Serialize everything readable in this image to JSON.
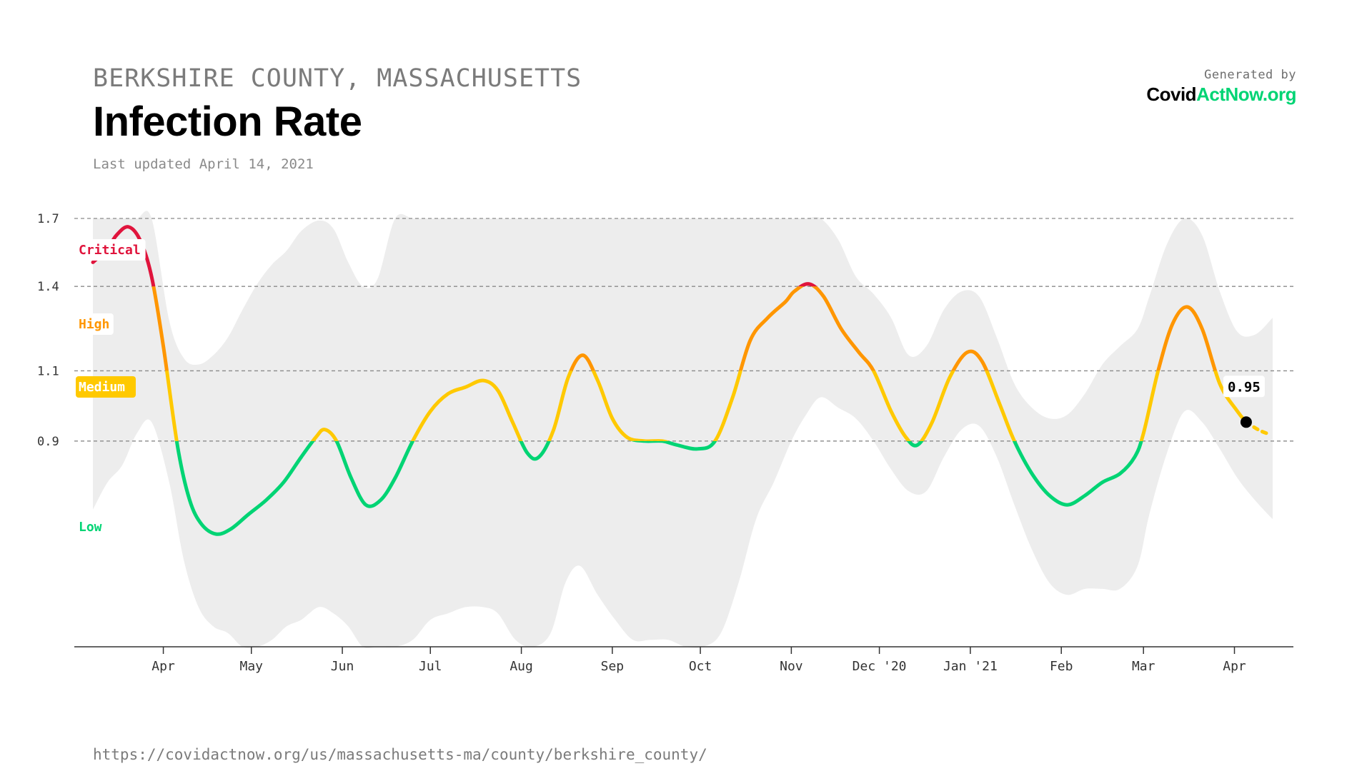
{
  "header": {
    "location": "BERKSHIRE COUNTY, MASSACHUSETTS",
    "title": "Infection Rate",
    "updated": "Last updated April 14, 2021"
  },
  "brand": {
    "generated_by": "Generated by",
    "logo_part1": "Covid",
    "logo_part2": "ActNow.org"
  },
  "footer": {
    "url": "https://covidactnow.org/us/massachusetts-ma/county/berkshire_county/"
  },
  "colors": {
    "critical": "#e0143c",
    "high": "#ff9600",
    "medium": "#ffc900",
    "low": "#00d474",
    "band": "#ededed",
    "gridline": "#8a8a8a",
    "axis": "#333333"
  },
  "chart_data": {
    "type": "line",
    "title": "Infection Rate",
    "x_axis_type": "date",
    "y_axis_type": "log",
    "xlim": [
      "2020-03-08",
      "2021-04-15"
    ],
    "ylim": [
      0.5,
      1.7
    ],
    "grid": true,
    "y_gridlines": [
      0.9,
      1.1,
      1.4,
      1.7
    ],
    "x_ticks": [
      {
        "date": "2020-04-01",
        "label": "Apr"
      },
      {
        "date": "2020-05-01",
        "label": "May"
      },
      {
        "date": "2020-06-01",
        "label": "Jun"
      },
      {
        "date": "2020-07-01",
        "label": "Jul"
      },
      {
        "date": "2020-08-01",
        "label": "Aug"
      },
      {
        "date": "2020-09-01",
        "label": "Sep"
      },
      {
        "date": "2020-10-01",
        "label": "Oct"
      },
      {
        "date": "2020-11-01",
        "label": "Nov"
      },
      {
        "date": "2020-12-01",
        "label": "Dec '20"
      },
      {
        "date": "2021-01-01",
        "label": "Jan '21"
      },
      {
        "date": "2021-02-01",
        "label": "Feb"
      },
      {
        "date": "2021-03-01",
        "label": "Mar"
      },
      {
        "date": "2021-04-01",
        "label": "Apr"
      }
    ],
    "y_ticks": [
      {
        "value": 0.9,
        "label": "0.9"
      },
      {
        "value": 1.1,
        "label": "1.1"
      },
      {
        "value": 1.4,
        "label": "1.4"
      },
      {
        "value": 1.7,
        "label": "1.7"
      }
    ],
    "levels": [
      {
        "name": "Critical",
        "label": "Critical",
        "min": 1.4,
        "max": 1.7,
        "color": "#e0143c"
      },
      {
        "name": "High",
        "label": "High",
        "min": 1.1,
        "max": 1.4,
        "color": "#ff9600"
      },
      {
        "name": "Medium",
        "label": "Medium",
        "min": 0.9,
        "max": 1.1,
        "color": "#ffc900"
      },
      {
        "name": "Low",
        "label": "Low",
        "min": 0.5,
        "max": 0.9,
        "color": "#00d474"
      }
    ],
    "series": [
      {
        "values": [
          [
            "2020-03-08",
            1.5
          ],
          [
            "2020-03-13",
            1.56
          ],
          [
            "2020-03-16",
            1.62
          ],
          [
            "2020-03-20",
            1.66
          ],
          [
            "2020-03-24",
            1.6
          ],
          [
            "2020-03-28",
            1.44
          ],
          [
            "2020-04-01",
            1.18
          ],
          [
            "2020-04-06",
            0.88
          ],
          [
            "2020-04-10",
            0.76
          ],
          [
            "2020-04-14",
            0.71
          ],
          [
            "2020-04-19",
            0.69
          ],
          [
            "2020-04-24",
            0.7
          ],
          [
            "2020-04-30",
            0.73
          ],
          [
            "2020-05-06",
            0.76
          ],
          [
            "2020-05-12",
            0.8
          ],
          [
            "2020-05-18",
            0.86
          ],
          [
            "2020-05-23",
            0.91
          ],
          [
            "2020-05-26",
            0.93
          ],
          [
            "2020-05-30",
            0.9
          ],
          [
            "2020-06-04",
            0.81
          ],
          [
            "2020-06-09",
            0.75
          ],
          [
            "2020-06-14",
            0.76
          ],
          [
            "2020-06-19",
            0.81
          ],
          [
            "2020-06-25",
            0.9
          ],
          [
            "2020-07-01",
            0.98
          ],
          [
            "2020-07-07",
            1.03
          ],
          [
            "2020-07-13",
            1.05
          ],
          [
            "2020-07-19",
            1.07
          ],
          [
            "2020-07-24",
            1.04
          ],
          [
            "2020-07-29",
            0.95
          ],
          [
            "2020-08-03",
            0.87
          ],
          [
            "2020-08-07",
            0.86
          ],
          [
            "2020-08-12",
            0.93
          ],
          [
            "2020-08-17",
            1.08
          ],
          [
            "2020-08-22",
            1.15
          ],
          [
            "2020-08-27",
            1.07
          ],
          [
            "2020-09-01",
            0.96
          ],
          [
            "2020-09-06",
            0.91
          ],
          [
            "2020-09-12",
            0.9
          ],
          [
            "2020-09-18",
            0.9
          ],
          [
            "2020-09-23",
            0.89
          ],
          [
            "2020-09-30",
            0.88
          ],
          [
            "2020-10-06",
            0.9
          ],
          [
            "2020-10-12",
            1.02
          ],
          [
            "2020-10-18",
            1.2
          ],
          [
            "2020-10-24",
            1.28
          ],
          [
            "2020-10-30",
            1.34
          ],
          [
            "2020-11-02",
            1.38
          ],
          [
            "2020-11-07",
            1.41
          ],
          [
            "2020-11-12",
            1.36
          ],
          [
            "2020-11-18",
            1.24
          ],
          [
            "2020-11-24",
            1.16
          ],
          [
            "2020-11-29",
            1.1
          ],
          [
            "2020-12-05",
            0.98
          ],
          [
            "2020-12-10",
            0.91
          ],
          [
            "2020-12-14",
            0.89
          ],
          [
            "2020-12-19",
            0.95
          ],
          [
            "2020-12-25",
            1.08
          ],
          [
            "2020-12-31",
            1.16
          ],
          [
            "2021-01-05",
            1.13
          ],
          [
            "2021-01-11",
            1.0
          ],
          [
            "2021-01-16",
            0.9
          ],
          [
            "2021-01-22",
            0.82
          ],
          [
            "2021-01-28",
            0.77
          ],
          [
            "2021-02-03",
            0.75
          ],
          [
            "2021-02-09",
            0.77
          ],
          [
            "2021-02-15",
            0.8
          ],
          [
            "2021-02-21",
            0.82
          ],
          [
            "2021-02-26",
            0.86
          ],
          [
            "2021-03-01",
            0.92
          ],
          [
            "2021-03-06",
            1.1
          ],
          [
            "2021-03-11",
            1.26
          ],
          [
            "2021-03-16",
            1.32
          ],
          [
            "2021-03-21",
            1.24
          ],
          [
            "2021-03-27",
            1.06
          ],
          [
            "2021-04-02",
            0.98
          ],
          [
            "2021-04-05",
            0.95
          ],
          [
            "2021-04-09",
            0.93
          ],
          [
            "2021-04-12",
            0.92
          ]
        ]
      }
    ],
    "projection_from": "2021-04-05",
    "confidence_band": [
      [
        "2020-03-08",
        0.74,
        1.7
      ],
      [
        "2020-03-13",
        0.8,
        1.7
      ],
      [
        "2020-03-18",
        0.84,
        1.7
      ],
      [
        "2020-03-23",
        0.92,
        1.7
      ],
      [
        "2020-03-28",
        0.95,
        1.7
      ],
      [
        "2020-04-03",
        0.8,
        1.27
      ],
      [
        "2020-04-08",
        0.64,
        1.14
      ],
      [
        "2020-04-13",
        0.56,
        1.12
      ],
      [
        "2020-04-18",
        0.53,
        1.15
      ],
      [
        "2020-04-23",
        0.52,
        1.21
      ],
      [
        "2020-04-28",
        0.5,
        1.31
      ],
      [
        "2020-05-03",
        0.5,
        1.41
      ],
      [
        "2020-05-08",
        0.51,
        1.49
      ],
      [
        "2020-05-13",
        0.53,
        1.55
      ],
      [
        "2020-05-18",
        0.54,
        1.64
      ],
      [
        "2020-05-24",
        0.56,
        1.69
      ],
      [
        "2020-05-29",
        0.55,
        1.65
      ],
      [
        "2020-06-03",
        0.53,
        1.5
      ],
      [
        "2020-06-08",
        0.5,
        1.4
      ],
      [
        "2020-06-13",
        0.5,
        1.43
      ],
      [
        "2020-06-19",
        0.5,
        1.7
      ],
      [
        "2020-06-25",
        0.51,
        1.7
      ],
      [
        "2020-07-01",
        0.54,
        1.7
      ],
      [
        "2020-07-07",
        0.55,
        1.7
      ],
      [
        "2020-07-13",
        0.56,
        1.7
      ],
      [
        "2020-07-19",
        0.56,
        1.7
      ],
      [
        "2020-07-24",
        0.55,
        1.7
      ],
      [
        "2020-07-30",
        0.51,
        1.7
      ],
      [
        "2020-08-05",
        0.5,
        1.7
      ],
      [
        "2020-08-11",
        0.52,
        1.7
      ],
      [
        "2020-08-16",
        0.6,
        1.7
      ],
      [
        "2020-08-21",
        0.63,
        1.7
      ],
      [
        "2020-08-27",
        0.58,
        1.7
      ],
      [
        "2020-09-02",
        0.54,
        1.7
      ],
      [
        "2020-09-08",
        0.51,
        1.7
      ],
      [
        "2020-09-14",
        0.51,
        1.7
      ],
      [
        "2020-09-20",
        0.51,
        1.7
      ],
      [
        "2020-09-26",
        0.5,
        1.7
      ],
      [
        "2020-10-02",
        0.5,
        1.7
      ],
      [
        "2020-10-08",
        0.52,
        1.7
      ],
      [
        "2020-10-14",
        0.6,
        1.7
      ],
      [
        "2020-10-20",
        0.72,
        1.7
      ],
      [
        "2020-10-26",
        0.8,
        1.7
      ],
      [
        "2020-11-01",
        0.9,
        1.7
      ],
      [
        "2020-11-06",
        0.97,
        1.7
      ],
      [
        "2020-11-11",
        1.02,
        1.7
      ],
      [
        "2020-11-17",
        0.99,
        1.6
      ],
      [
        "2020-11-23",
        0.96,
        1.44
      ],
      [
        "2020-11-29",
        0.9,
        1.37
      ],
      [
        "2020-12-05",
        0.83,
        1.28
      ],
      [
        "2020-12-11",
        0.78,
        1.15
      ],
      [
        "2020-12-17",
        0.78,
        1.18
      ],
      [
        "2020-12-23",
        0.86,
        1.31
      ],
      [
        "2020-12-29",
        0.93,
        1.38
      ],
      [
        "2021-01-04",
        0.94,
        1.36
      ],
      [
        "2021-01-10",
        0.86,
        1.21
      ],
      [
        "2021-01-16",
        0.75,
        1.06
      ],
      [
        "2021-01-22",
        0.66,
        0.99
      ],
      [
        "2021-01-28",
        0.6,
        0.96
      ],
      [
        "2021-02-03",
        0.58,
        0.97
      ],
      [
        "2021-02-09",
        0.59,
        1.03
      ],
      [
        "2021-02-15",
        0.59,
        1.12
      ],
      [
        "2021-02-21",
        0.59,
        1.18
      ],
      [
        "2021-02-27",
        0.63,
        1.24
      ],
      [
        "2021-03-03",
        0.73,
        1.36
      ],
      [
        "2021-03-09",
        0.87,
        1.58
      ],
      [
        "2021-03-15",
        0.98,
        1.7
      ],
      [
        "2021-03-21",
        0.95,
        1.62
      ],
      [
        "2021-03-27",
        0.88,
        1.38
      ],
      [
        "2021-04-02",
        0.81,
        1.23
      ],
      [
        "2021-04-08",
        0.76,
        1.22
      ],
      [
        "2021-04-14",
        0.72,
        1.28
      ]
    ],
    "annotations": [
      {
        "date": "2021-04-05",
        "value": 0.95,
        "label": "0.95"
      }
    ]
  }
}
